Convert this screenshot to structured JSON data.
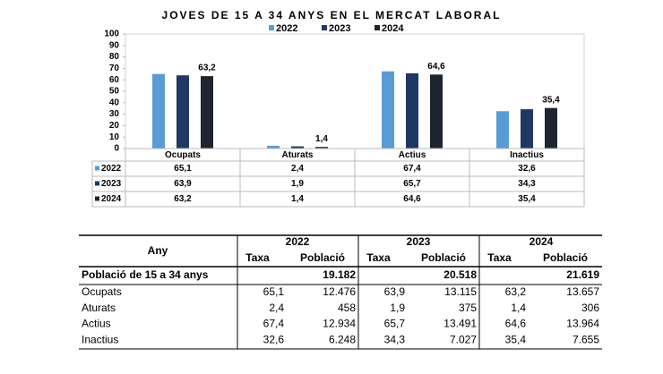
{
  "chart_data": {
    "type": "bar",
    "title": "JOVES DE 15 A 34 ANYS EN EL MERCAT LABORAL",
    "categories": [
      "Ocupats",
      "Aturats",
      "Actius",
      "Inactius"
    ],
    "series": [
      {
        "name": "2022",
        "color": "#5b9bd5",
        "values": [
          65.1,
          2.4,
          67.4,
          32.6
        ],
        "value_labels": [
          "65,1",
          "2,4",
          "67,4",
          "32,6"
        ],
        "labels": false
      },
      {
        "name": "2023",
        "color": "#203864",
        "values": [
          63.9,
          1.9,
          65.7,
          34.3
        ],
        "value_labels": [
          "63,9",
          "1,9",
          "65,7",
          "34,3"
        ],
        "labels": false
      },
      {
        "name": "2024",
        "color": "#1e2530",
        "values": [
          63.2,
          1.4,
          64.6,
          35.4
        ],
        "value_labels": [
          "63,2",
          "1,4",
          "64,6",
          "35,4"
        ],
        "labels": true
      }
    ],
    "ylim": [
      0,
      100
    ],
    "yticks": [
      0,
      10,
      20,
      30,
      40,
      50,
      60,
      70,
      80,
      90,
      100
    ],
    "grid": false
  },
  "table": {
    "header": [
      "Any",
      "2022",
      "2023",
      "2024"
    ],
    "subheader": [
      "Taxa",
      "Població",
      "Taxa",
      "Població",
      "Taxa",
      "Població"
    ],
    "total_row": {
      "label": "Població de 15 a 34 anys",
      "values": [
        "19.182",
        "20.518",
        "21.619"
      ]
    },
    "rows": [
      [
        "Ocupats",
        "65,1",
        "12.476",
        "63,9",
        "13.115",
        "63,2",
        "13.657"
      ],
      [
        "Aturats",
        "2,4",
        "458",
        "1,9",
        "375",
        "1,4",
        "306"
      ],
      [
        "Actius",
        "67,4",
        "12.934",
        "65,7",
        "13.491",
        "64,6",
        "13.964"
      ],
      [
        "Inactius",
        "32,6",
        "6.248",
        "34,3",
        "7.027",
        "35,4",
        "7.655"
      ]
    ]
  }
}
